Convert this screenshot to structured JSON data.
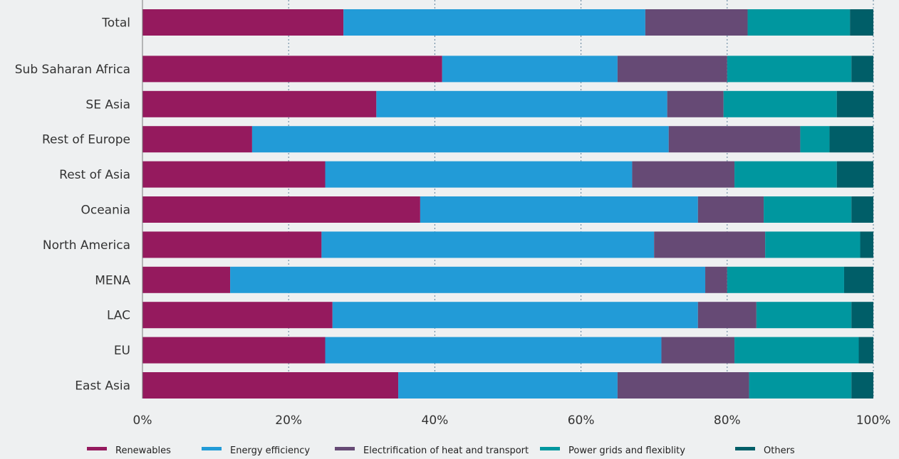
{
  "chart_data": {
    "type": "bar",
    "orientation": "horizontal",
    "stacked": true,
    "percent": true,
    "categories": [
      "Total",
      "Sub Saharan Africa",
      "SE Asia",
      "Rest of Europe",
      "Rest of Asia",
      "Oceania",
      "North America",
      "MENA",
      "LAC",
      "EU",
      "East Asia"
    ],
    "series": [
      {
        "name": "Renewables",
        "color": "#951a5e",
        "values": [
          27.5,
          41,
          32,
          15,
          25,
          38,
          24.5,
          12,
          26,
          25,
          35
        ]
      },
      {
        "name": "Energy efficiency",
        "color": "#229bd7",
        "values": [
          41.3,
          24,
          39.8,
          57,
          42,
          38,
          45.5,
          65,
          50,
          46,
          30
        ]
      },
      {
        "name": "Electrification of heat and transport",
        "color": "#664a75",
        "values": [
          14,
          15,
          7.7,
          18,
          14,
          9,
          15.2,
          3,
          8,
          10,
          18
        ]
      },
      {
        "name": "Power grids and flexiblity",
        "color": "#00979f",
        "values": [
          14,
          17,
          15.5,
          4,
          14,
          12,
          13,
          16,
          13,
          17,
          14
        ]
      },
      {
        "name": "Others",
        "color": "#005e68",
        "values": [
          3.2,
          3,
          5,
          6,
          5,
          3,
          1.8,
          4,
          3,
          2,
          3
        ]
      }
    ],
    "xlim": [
      0,
      100
    ],
    "xticks": [
      "0%",
      "20%",
      "40%",
      "60%",
      "80%",
      "100%"
    ],
    "xtick_values": [
      0,
      20,
      40,
      60,
      80,
      100
    ],
    "grid": "vertical-dotted",
    "legend_position": "bottom",
    "title": "",
    "xlabel": "",
    "ylabel": ""
  }
}
